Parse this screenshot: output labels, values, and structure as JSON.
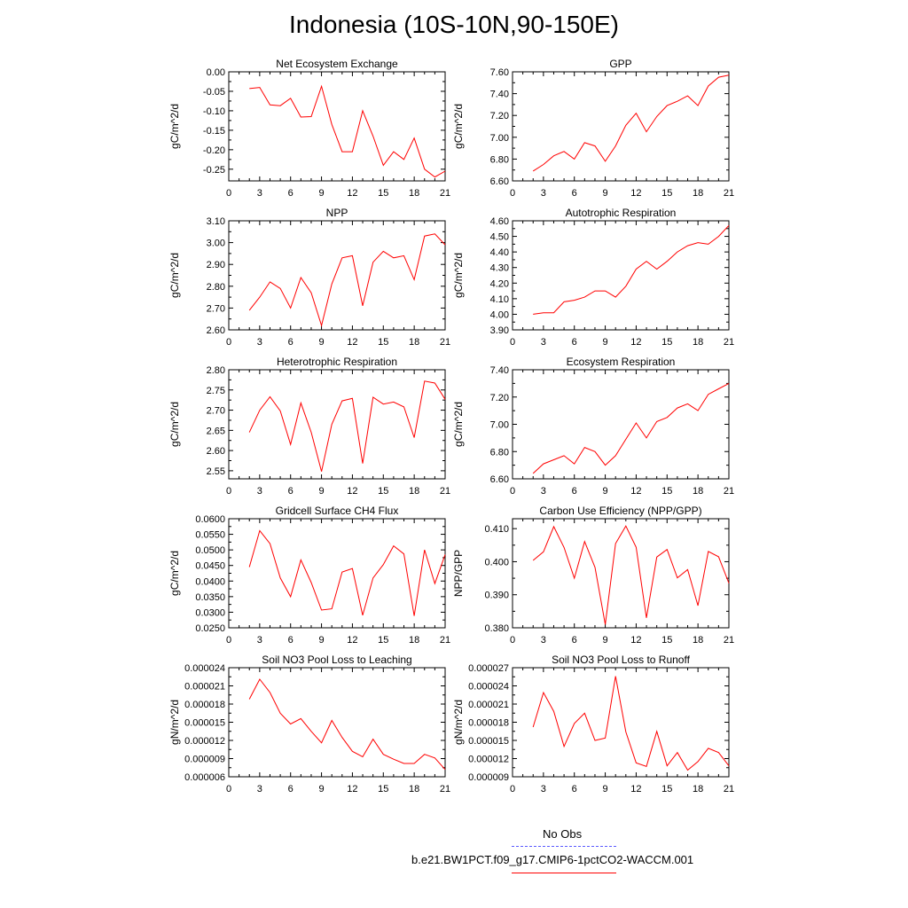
{
  "title": "Indonesia (10S-10N,90-150E)",
  "legend": {
    "obs_label": "No Obs",
    "obs_color": "#5a5aff",
    "model_label": "b.e21.BW1PCT.f09_g17.CMIP6-1pctCO2-WACCM.001",
    "model_color": "#ff0000"
  },
  "chart_data": [
    {
      "type": "line",
      "title": "Net Ecosystem Exchange",
      "ylabel": "gC/m^2/d",
      "xlim": [
        0,
        21
      ],
      "ylim": [
        -0.28,
        0.0
      ],
      "xticks": [
        0,
        3,
        6,
        9,
        12,
        15,
        18,
        21
      ],
      "yticks": [
        -0.25,
        -0.2,
        -0.15,
        -0.1,
        -0.05,
        0.0
      ],
      "ytick_labels": [
        "-0.25",
        "-0.20",
        "-0.15",
        "-0.10",
        "-0.05",
        "0.00"
      ],
      "x": [
        2,
        3,
        4,
        5,
        6,
        7,
        8,
        9,
        10,
        11,
        12,
        13,
        14,
        15,
        16,
        17,
        18,
        19,
        20,
        21
      ],
      "series": [
        {
          "color": "#ff0000",
          "values": [
            -0.043,
            -0.04,
            -0.085,
            -0.087,
            -0.068,
            -0.116,
            -0.115,
            -0.037,
            -0.135,
            -0.205,
            -0.205,
            -0.1,
            -0.165,
            -0.24,
            -0.205,
            -0.225,
            -0.17,
            -0.25,
            -0.27,
            -0.255
          ]
        }
      ]
    },
    {
      "type": "line",
      "title": "GPP",
      "ylabel": "gC/m^2/d",
      "xlim": [
        0,
        21
      ],
      "ylim": [
        6.6,
        7.6
      ],
      "xticks": [
        0,
        3,
        6,
        9,
        12,
        15,
        18,
        21
      ],
      "yticks": [
        6.6,
        6.8,
        7.0,
        7.2,
        7.4,
        7.6
      ],
      "ytick_labels": [
        "6.60",
        "6.80",
        "7.00",
        "7.20",
        "7.40",
        "7.60"
      ],
      "x": [
        2,
        3,
        4,
        5,
        6,
        7,
        8,
        9,
        10,
        11,
        12,
        13,
        14,
        15,
        16,
        17,
        18,
        19,
        20,
        21
      ],
      "series": [
        {
          "color": "#ff0000",
          "values": [
            6.69,
            6.75,
            6.83,
            6.87,
            6.8,
            6.95,
            6.92,
            6.78,
            6.92,
            7.11,
            7.22,
            7.05,
            7.19,
            7.29,
            7.33,
            7.38,
            7.29,
            7.47,
            7.55,
            7.57
          ]
        }
      ]
    },
    {
      "type": "line",
      "title": "NPP",
      "ylabel": "gC/m^2/d",
      "xlim": [
        0,
        21
      ],
      "ylim": [
        2.6,
        3.1
      ],
      "xticks": [
        0,
        3,
        6,
        9,
        12,
        15,
        18,
        21
      ],
      "yticks": [
        2.6,
        2.7,
        2.8,
        2.9,
        3.0,
        3.1
      ],
      "ytick_labels": [
        "2.60",
        "2.70",
        "2.80",
        "2.90",
        "3.00",
        "3.10"
      ],
      "x": [
        2,
        3,
        4,
        5,
        6,
        7,
        8,
        9,
        10,
        11,
        12,
        13,
        14,
        15,
        16,
        17,
        18,
        19,
        20,
        21
      ],
      "series": [
        {
          "color": "#ff0000",
          "values": [
            2.69,
            2.75,
            2.82,
            2.79,
            2.7,
            2.84,
            2.77,
            2.62,
            2.81,
            2.93,
            2.94,
            2.71,
            2.91,
            2.96,
            2.93,
            2.94,
            2.83,
            3.03,
            3.04,
            2.99
          ]
        }
      ]
    },
    {
      "type": "line",
      "title": "Autotrophic Respiration",
      "ylabel": "gC/m^2/d",
      "xlim": [
        0,
        21
      ],
      "ylim": [
        3.9,
        4.6
      ],
      "xticks": [
        0,
        3,
        6,
        9,
        12,
        15,
        18,
        21
      ],
      "yticks": [
        3.9,
        4.0,
        4.1,
        4.2,
        4.3,
        4.4,
        4.5,
        4.6
      ],
      "ytick_labels": [
        "3.90",
        "4.00",
        "4.10",
        "4.20",
        "4.30",
        "4.40",
        "4.50",
        "4.60"
      ],
      "x": [
        2,
        3,
        4,
        5,
        6,
        7,
        8,
        9,
        10,
        11,
        12,
        13,
        14,
        15,
        16,
        17,
        18,
        19,
        20,
        21
      ],
      "series": [
        {
          "color": "#ff0000",
          "values": [
            4.0,
            4.01,
            4.01,
            4.08,
            4.09,
            4.11,
            4.15,
            4.15,
            4.11,
            4.18,
            4.29,
            4.34,
            4.29,
            4.34,
            4.4,
            4.44,
            4.46,
            4.45,
            4.5,
            4.57
          ]
        }
      ]
    },
    {
      "type": "line",
      "title": "Heterotrophic Respiration",
      "ylabel": "gC/m^2/d",
      "xlim": [
        0,
        21
      ],
      "ylim": [
        2.53,
        2.8
      ],
      "xticks": [
        0,
        3,
        6,
        9,
        12,
        15,
        18,
        21
      ],
      "yticks": [
        2.55,
        2.6,
        2.65,
        2.7,
        2.75,
        2.8
      ],
      "ytick_labels": [
        "2.55",
        "2.60",
        "2.65",
        "2.70",
        "2.75",
        "2.80"
      ],
      "x": [
        2,
        3,
        4,
        5,
        6,
        7,
        8,
        9,
        10,
        11,
        12,
        13,
        14,
        15,
        16,
        17,
        18,
        19,
        20,
        21
      ],
      "series": [
        {
          "color": "#ff0000",
          "values": [
            2.645,
            2.7,
            2.733,
            2.698,
            2.615,
            2.718,
            2.645,
            2.548,
            2.665,
            2.723,
            2.729,
            2.568,
            2.732,
            2.715,
            2.72,
            2.708,
            2.632,
            2.772,
            2.767,
            2.727
          ]
        }
      ]
    },
    {
      "type": "line",
      "title": "Ecosystem Respiration",
      "ylabel": "gC/m^2/d",
      "xlim": [
        0,
        21
      ],
      "ylim": [
        6.6,
        7.4
      ],
      "xticks": [
        0,
        3,
        6,
        9,
        12,
        15,
        18,
        21
      ],
      "yticks": [
        6.6,
        6.8,
        7.0,
        7.2,
        7.4
      ],
      "ytick_labels": [
        "6.60",
        "6.80",
        "7.00",
        "7.20",
        "7.40"
      ],
      "x": [
        2,
        3,
        4,
        5,
        6,
        7,
        8,
        9,
        10,
        11,
        12,
        13,
        14,
        15,
        16,
        17,
        18,
        19,
        20,
        21
      ],
      "series": [
        {
          "color": "#ff0000",
          "values": [
            6.64,
            6.71,
            6.74,
            6.77,
            6.71,
            6.83,
            6.8,
            6.7,
            6.77,
            6.89,
            7.01,
            6.9,
            7.02,
            7.05,
            7.12,
            7.15,
            7.1,
            7.22,
            7.26,
            7.3
          ]
        }
      ]
    },
    {
      "type": "line",
      "title": "Gridcell Surface CH4 Flux",
      "ylabel": "gC/m^2/d",
      "xlim": [
        0,
        21
      ],
      "ylim": [
        0.025,
        0.06
      ],
      "xticks": [
        0,
        3,
        6,
        9,
        12,
        15,
        18,
        21
      ],
      "yticks": [
        0.025,
        0.03,
        0.035,
        0.04,
        0.045,
        0.05,
        0.055,
        0.06
      ],
      "ytick_labels": [
        "0.0250",
        "0.0300",
        "0.0350",
        "0.0400",
        "0.0450",
        "0.0500",
        "0.0550",
        "0.0600"
      ],
      "x": [
        2,
        3,
        4,
        5,
        6,
        7,
        8,
        9,
        10,
        11,
        12,
        13,
        14,
        15,
        16,
        17,
        18,
        19,
        20,
        21
      ],
      "series": [
        {
          "color": "#ff0000",
          "values": [
            0.0445,
            0.0562,
            0.052,
            0.041,
            0.035,
            0.0468,
            0.0395,
            0.0307,
            0.0311,
            0.0429,
            0.044,
            0.029,
            0.041,
            0.0453,
            0.0513,
            0.0487,
            0.0288,
            0.05,
            0.0392,
            0.0485
          ]
        }
      ]
    },
    {
      "type": "line",
      "title": "Carbon Use Efficiency (NPP/GPP)",
      "ylabel": "NPP/GPP",
      "xlim": [
        0,
        21
      ],
      "ylim": [
        0.38,
        0.413
      ],
      "xticks": [
        0,
        3,
        6,
        9,
        12,
        15,
        18,
        21
      ],
      "yticks": [
        0.38,
        0.39,
        0.4,
        0.41
      ],
      "ytick_labels": [
        "0.380",
        "0.390",
        "0.400",
        "0.410"
      ],
      "x": [
        2,
        3,
        4,
        5,
        6,
        7,
        8,
        9,
        10,
        11,
        12,
        13,
        14,
        15,
        16,
        17,
        18,
        19,
        20,
        21
      ],
      "series": [
        {
          "color": "#ff0000",
          "values": [
            0.4004,
            0.403,
            0.4106,
            0.4043,
            0.395,
            0.4061,
            0.3983,
            0.381,
            0.4055,
            0.4108,
            0.4044,
            0.383,
            0.4014,
            0.4037,
            0.3951,
            0.3976,
            0.3867,
            0.4031,
            0.4015,
            0.3935
          ]
        }
      ]
    },
    {
      "type": "line",
      "title": "Soil NO3 Pool Loss to Leaching",
      "ylabel": "gN/m^2/d",
      "xlim": [
        0,
        21
      ],
      "ylim": [
        6e-06,
        2.4e-05
      ],
      "xticks": [
        0,
        3,
        6,
        9,
        12,
        15,
        18,
        21
      ],
      "yticks": [
        6e-06,
        9e-06,
        1.2e-05,
        1.5e-05,
        1.8e-05,
        2.1e-05,
        2.4e-05
      ],
      "ytick_labels": [
        "0.000006",
        "0.000009",
        "0.000012",
        "0.000015",
        "0.000018",
        "0.000021",
        "0.000024"
      ],
      "x": [
        2,
        3,
        4,
        5,
        6,
        7,
        8,
        9,
        10,
        11,
        12,
        13,
        14,
        15,
        16,
        17,
        18,
        19,
        20,
        21
      ],
      "series": [
        {
          "color": "#ff0000",
          "values": [
            1.88e-05,
            2.21e-05,
            1.99e-05,
            1.65e-05,
            1.47e-05,
            1.56e-05,
            1.35e-05,
            1.16e-05,
            1.53e-05,
            1.25e-05,
            1.02e-05,
            9.3e-06,
            1.22e-05,
            9.7e-06,
            8.9e-06,
            8.2e-06,
            8.2e-06,
            9.7e-06,
            9.1e-06,
            7.2e-06
          ]
        }
      ]
    },
    {
      "type": "line",
      "title": "Soil NO3 Pool Loss to Runoff",
      "ylabel": "gN/m^2/d",
      "xlim": [
        0,
        21
      ],
      "ylim": [
        9e-06,
        2.7e-05
      ],
      "xticks": [
        0,
        3,
        6,
        9,
        12,
        15,
        18,
        21
      ],
      "yticks": [
        9e-06,
        1.2e-05,
        1.5e-05,
        1.8e-05,
        2.1e-05,
        2.4e-05,
        2.7e-05
      ],
      "ytick_labels": [
        "0.000009",
        "0.000012",
        "0.000015",
        "0.000018",
        "0.000021",
        "0.000024",
        "0.000027"
      ],
      "x": [
        2,
        3,
        4,
        5,
        6,
        7,
        8,
        9,
        10,
        11,
        12,
        13,
        14,
        15,
        16,
        17,
        18,
        19,
        20,
        21
      ],
      "series": [
        {
          "color": "#ff0000",
          "values": [
            1.72e-05,
            2.29e-05,
            1.98e-05,
            1.4e-05,
            1.78e-05,
            1.95e-05,
            1.5e-05,
            1.54e-05,
            2.56e-05,
            1.64e-05,
            1.13e-05,
            1.07e-05,
            1.65e-05,
            1.08e-05,
            1.3e-05,
            1.01e-05,
            1.15e-05,
            1.37e-05,
            1.3e-05,
            1.08e-05
          ]
        }
      ]
    }
  ]
}
